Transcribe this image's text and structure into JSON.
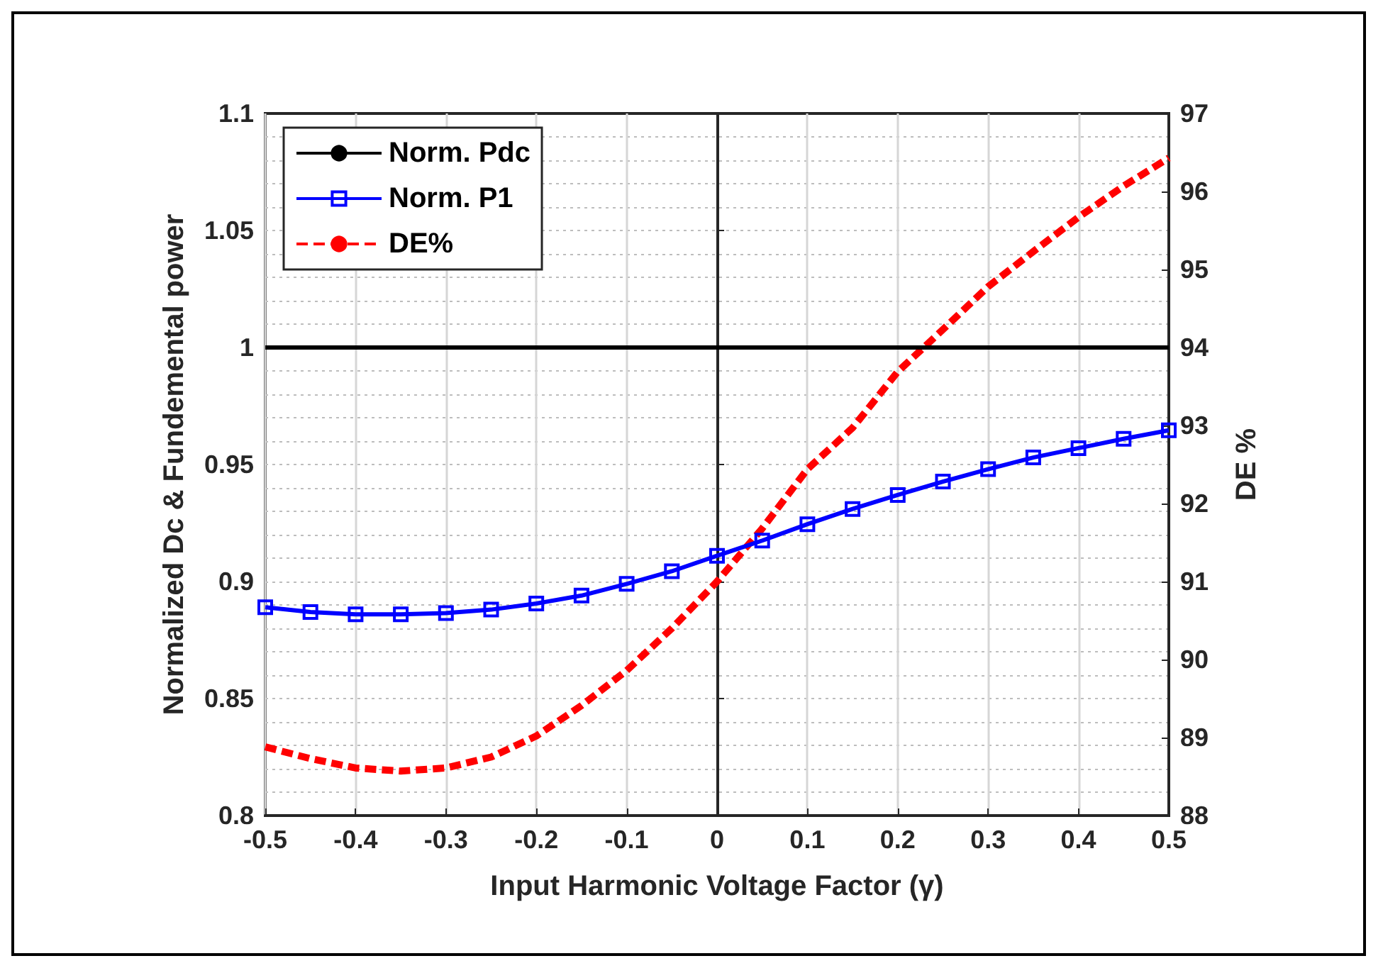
{
  "chart_data": {
    "type": "line",
    "xlabel": "Input Harmonic Voltage Factor (γ)",
    "ylabel": "Normalized Dc & Fundemental power",
    "y2label": "DE %",
    "x": [
      -0.5,
      -0.45,
      -0.4,
      -0.35,
      -0.3,
      -0.25,
      -0.2,
      -0.15,
      -0.1,
      -0.05,
      0,
      0.05,
      0.1,
      0.15,
      0.2,
      0.25,
      0.3,
      0.35,
      0.4,
      0.45,
      0.5
    ],
    "series": [
      {
        "name": "Norm. Pdc",
        "color": "#000000",
        "x": [
          -0.5,
          0.5
        ],
        "values": [
          1,
          1
        ],
        "marker": "none",
        "line_style": "solid"
      },
      {
        "name": "Norm. P1",
        "color": "#0000ff",
        "marker": "square",
        "line_style": "solid",
        "values": [
          0.889,
          0.887,
          0.886,
          0.886,
          0.8865,
          0.888,
          0.8906,
          0.894,
          0.899,
          0.9044,
          0.911,
          0.9175,
          0.9245,
          0.931,
          0.937,
          0.9427,
          0.948,
          0.953,
          0.957,
          0.961,
          0.9646
        ]
      },
      {
        "name": "DE%",
        "color": "#ff0000",
        "axis": "y2",
        "marker": "none",
        "line_style": "dashed",
        "values": [
          88.88,
          88.73,
          88.61,
          88.57,
          88.61,
          88.75,
          89.02,
          89.41,
          89.86,
          90.4,
          91.0,
          91.68,
          92.44,
          92.97,
          93.69,
          94.23,
          94.78,
          95.23,
          95.67,
          96.07,
          96.43
        ]
      }
    ],
    "xlim": [
      -0.5,
      0.5
    ],
    "xticks": [
      -0.5,
      -0.4,
      -0.3,
      -0.2,
      -0.1,
      0,
      0.1,
      0.2,
      0.3,
      0.4,
      0.5
    ],
    "ylim": [
      0.8,
      1.1
    ],
    "yticks": [
      0.8,
      0.85,
      0.9,
      0.95,
      1,
      1.05,
      1.1
    ],
    "y2lim": [
      88,
      97
    ],
    "y2ticks": [
      88,
      89,
      90,
      91,
      92,
      93,
      94,
      95,
      96,
      97
    ],
    "grid": true,
    "legend": "top left"
  }
}
